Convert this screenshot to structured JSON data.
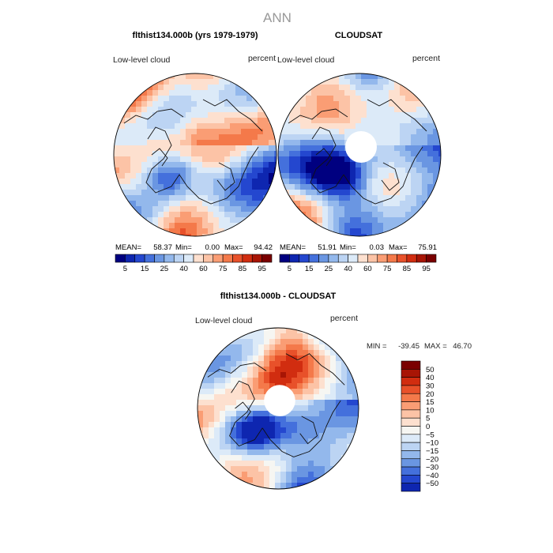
{
  "page_title": "ANN",
  "colors": {
    "reds": [
      "#fde0cf",
      "#fcc3a6",
      "#fa9d74",
      "#f4794a",
      "#e8512a",
      "#d12d10",
      "#a81505",
      "#7a0000"
    ],
    "blues": [
      "#dceaf8",
      "#bcd4f3",
      "#93b8ec",
      "#6a96e2",
      "#4470dc",
      "#2447cf",
      "#0e26b0",
      "#000080"
    ],
    "neutral": "#f6f6f2",
    "land": "#111111",
    "hole": "#ffffff"
  },
  "chart_data": [
    {
      "type": "heatmap",
      "projection": "north-polar-stereographic",
      "title": "flthist134.000b (yrs 1979-1979)",
      "left_label": "Low-level cloud",
      "right_label": "percent",
      "stats": {
        "mean_label": "MEAN=",
        "mean": "58.37",
        "min_label": "Min=",
        "min": "0.00",
        "max_label": "Max=",
        "max": "94.42"
      },
      "colorbar": {
        "orientation": "horizontal",
        "ticks": [
          "5",
          "15",
          "25",
          "40",
          "60",
          "75",
          "85",
          "95"
        ],
        "colors": [
          "#000080",
          "#0e26b0",
          "#2447cf",
          "#4470dc",
          "#6a96e2",
          "#93b8ec",
          "#bcd4f3",
          "#dceaf8",
          "#fde0cf",
          "#fcc3a6",
          "#fa9d74",
          "#f4794a",
          "#e8512a",
          "#d12d10",
          "#a81505",
          "#7a0000"
        ]
      },
      "field": {
        "base": 0.62,
        "amplitude": 0.3,
        "hole": false,
        "seed": 1.3
      }
    },
    {
      "type": "heatmap",
      "projection": "north-polar-stereographic",
      "title": "CLOUDSAT",
      "left_label": "Low-level cloud",
      "right_label": "percent",
      "stats": {
        "mean_label": "MEAN=",
        "mean": "51.91",
        "min_label": "Min=",
        "min": "0.03",
        "max_label": "Max=",
        "max": "75.91"
      },
      "colorbar": {
        "orientation": "horizontal",
        "ticks": [
          "5",
          "15",
          "25",
          "40",
          "60",
          "75",
          "85",
          "95"
        ],
        "colors": [
          "#000080",
          "#0e26b0",
          "#2447cf",
          "#4470dc",
          "#6a96e2",
          "#93b8ec",
          "#bcd4f3",
          "#dceaf8",
          "#fde0cf",
          "#fcc3a6",
          "#fa9d74",
          "#f4794a",
          "#e8512a",
          "#d12d10",
          "#a81505",
          "#7a0000"
        ]
      },
      "field": {
        "base": 0.5,
        "amplitude": 0.22,
        "hole": true,
        "seed": 4.1
      }
    },
    {
      "type": "heatmap",
      "projection": "north-polar-stereographic",
      "title": "flthist134.000b - CLOUDSAT",
      "left_label": "Low-level cloud",
      "right_label": "percent",
      "stats": {
        "min_label": "MIN =",
        "min": "-39.45",
        "max_label": "MAX =",
        "max": "46.70"
      },
      "colorbar": {
        "orientation": "vertical",
        "ticks": [
          "50",
          "40",
          "30",
          "20",
          "15",
          "10",
          "5",
          "0",
          "−5",
          "−10",
          "−15",
          "−20",
          "−30",
          "−40",
          "−50"
        ],
        "colors": [
          "#7a0000",
          "#a81505",
          "#d12d10",
          "#e8512a",
          "#f4794a",
          "#fa9d74",
          "#fcc3a6",
          "#fde0cf",
          "#f6f6f2",
          "#dceaf8",
          "#bcd4f3",
          "#93b8ec",
          "#6a96e2",
          "#4470dc",
          "#2447cf",
          "#0e26b0"
        ]
      },
      "field": {
        "base": 0.55,
        "amplitude": 0.35,
        "hole": true,
        "seed": 7.7
      }
    }
  ]
}
